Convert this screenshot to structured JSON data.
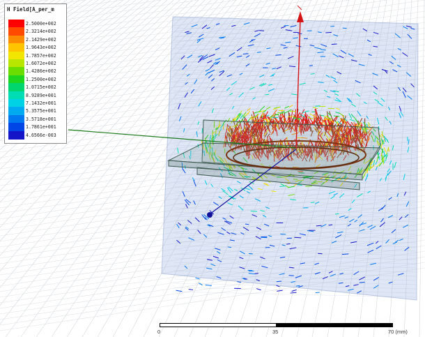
{
  "legend": {
    "title": "H Field[A_per_m",
    "entries": [
      {
        "label": "2.5000e+002",
        "color": "#ff0000"
      },
      {
        "label": "2.3214e+002",
        "color": "#ff4a00"
      },
      {
        "label": "2.1429e+002",
        "color": "#ff8c00"
      },
      {
        "label": "1.9643e+002",
        "color": "#ffc400"
      },
      {
        "label": "1.7857e+002",
        "color": "#f2e600"
      },
      {
        "label": "1.6072e+002",
        "color": "#b8e600"
      },
      {
        "label": "1.4286e+002",
        "color": "#6cdd00"
      },
      {
        "label": "1.2500e+002",
        "color": "#1fd61f"
      },
      {
        "label": "1.0715e+002",
        "color": "#00d66e"
      },
      {
        "label": "8.9289e+001",
        "color": "#00dcb4"
      },
      {
        "label": "7.1432e+001",
        "color": "#00d2e6"
      },
      {
        "label": "5.3575e+001",
        "color": "#00aaf0"
      },
      {
        "label": "3.5718e+001",
        "color": "#0078f0"
      },
      {
        "label": "1.7861e+001",
        "color": "#0046e6"
      },
      {
        "label": "4.6566e-003",
        "color": "#1414c8"
      }
    ]
  },
  "scale": {
    "labels": [
      "0",
      "35",
      "70 (mm)"
    ]
  },
  "axes": {
    "x_color": "#1a7a1a",
    "y_color": "#10109a",
    "z_color": "#d41414"
  }
}
